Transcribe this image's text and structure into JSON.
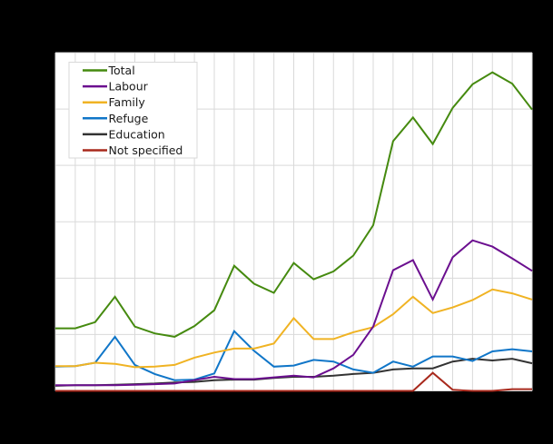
{
  "chart_data": {
    "type": "line",
    "title": "",
    "xlabel": "",
    "ylabel": "",
    "x_count": 25,
    "ylim": [
      0,
      60000
    ],
    "y_gridlines": [
      0,
      10000,
      20000,
      30000,
      40000,
      50000,
      60000
    ],
    "grid": true,
    "legend_position": "upper-left (inside plot)",
    "tick_labels_visible": false,
    "series": [
      {
        "name": "Total",
        "color": "#458a0f",
        "values": [
          11100,
          11100,
          12200,
          16700,
          11400,
          10200,
          9600,
          11500,
          14300,
          22200,
          19000,
          17400,
          22700,
          19800,
          21200,
          24000,
          29400,
          44300,
          48500,
          43800,
          50200,
          54400,
          56500,
          54500,
          49900
        ]
      },
      {
        "name": "Labour",
        "color": "#6b0f8f",
        "values": [
          1000,
          1000,
          1000,
          1000,
          1100,
          1200,
          1300,
          1900,
          2500,
          2100,
          2100,
          2400,
          2700,
          2400,
          4000,
          6400,
          11400,
          21400,
          23200,
          16200,
          23700,
          26700,
          25600,
          23500,
          21300
        ]
      },
      {
        "name": "Family",
        "color": "#f0b323",
        "values": [
          4400,
          4400,
          5000,
          4800,
          4200,
          4300,
          4600,
          5900,
          6800,
          7500,
          7500,
          8400,
          12900,
          9200,
          9200,
          10400,
          11300,
          13600,
          16700,
          13800,
          14800,
          16100,
          18000,
          17300,
          16200
        ]
      },
      {
        "name": "Refuge",
        "color": "#1076c8",
        "values": [
          4300,
          4400,
          5000,
          9600,
          4600,
          3000,
          1900,
          2000,
          3100,
          10600,
          7100,
          4300,
          4500,
          5500,
          5200,
          3800,
          3200,
          5200,
          4300,
          6100,
          6100,
          5300,
          7000,
          7400,
          7000
        ]
      },
      {
        "name": "Education",
        "color": "#333333",
        "values": [
          900,
          1000,
          1000,
          1100,
          1200,
          1300,
          1500,
          1600,
          1900,
          2000,
          2000,
          2300,
          2500,
          2500,
          2700,
          3000,
          3200,
          3800,
          4000,
          4000,
          5200,
          5700,
          5400,
          5700,
          4900
        ]
      },
      {
        "name": "Not specified",
        "color": "#a8291c",
        "values": [
          0,
          0,
          0,
          0,
          0,
          0,
          0,
          0,
          0,
          0,
          0,
          0,
          0,
          0,
          0,
          0,
          0,
          0,
          0,
          3200,
          200,
          0,
          0,
          300,
          300
        ]
      }
    ]
  },
  "legend": {
    "items": [
      {
        "label": "Total",
        "color": "#458a0f"
      },
      {
        "label": "Labour",
        "color": "#6b0f8f"
      },
      {
        "label": "Family",
        "color": "#f0b323"
      },
      {
        "label": "Refuge",
        "color": "#1076c8"
      },
      {
        "label": "Education",
        "color": "#333333"
      },
      {
        "label": "Not specified",
        "color": "#a8291c"
      }
    ]
  },
  "colors": {
    "background": "#000000",
    "plot_background": "#ffffff",
    "gridline": "#d9d9d9",
    "legend_border": "#d9d9d9"
  }
}
